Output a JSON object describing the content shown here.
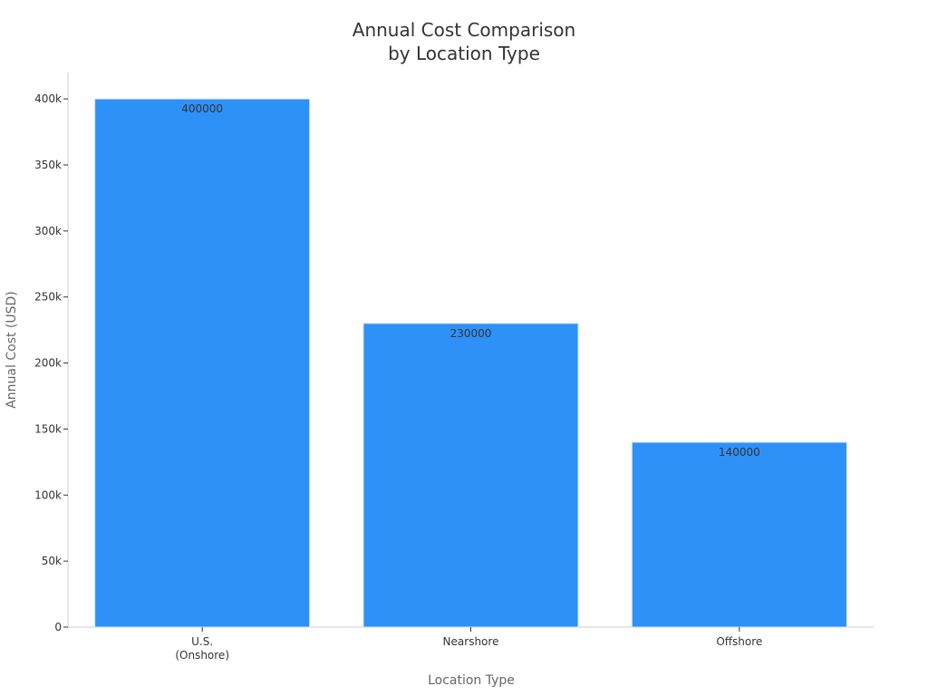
{
  "chart_data": {
    "type": "bar",
    "title_lines": [
      "Annual Cost Comparison",
      "by Location Type"
    ],
    "xlabel": "Location Type",
    "ylabel": "Annual Cost (USD)",
    "categories": [
      [
        "U.S.",
        "(Onshore)"
      ],
      [
        "Nearshore"
      ],
      [
        "Offshore"
      ]
    ],
    "values": [
      400000,
      230000,
      140000
    ],
    "data_labels": [
      "400000",
      "230000",
      "140000"
    ],
    "ylim": [
      0,
      420000
    ],
    "yticks": [
      0,
      50000,
      100000,
      150000,
      200000,
      250000,
      300000,
      350000,
      400000
    ],
    "ytick_labels": [
      "0",
      "50k",
      "100k",
      "150k",
      "200k",
      "250k",
      "300k",
      "350k",
      "400k"
    ],
    "bar_color": "#2E91F8",
    "grid": false,
    "legend": "none"
  }
}
